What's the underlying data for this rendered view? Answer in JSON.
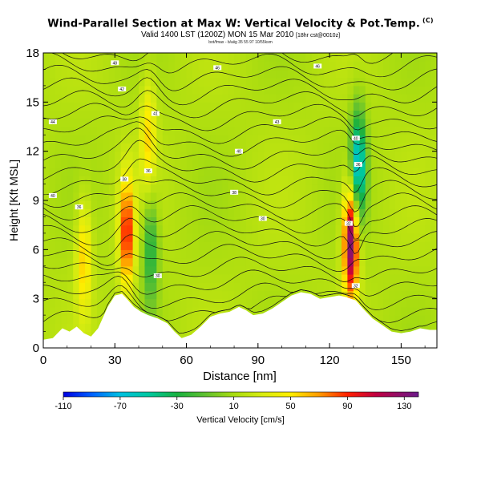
{
  "title": {
    "main": "Wind-Parallel Section at Max W: Vertical Velocity & Pot.Temp.",
    "copyright": "(C)",
    "valid": "Valid 1400 LST (1200Z) MON 15 Mar 2010",
    "valid_note": "[18hr cst@0010z]",
    "subtitle": "bot/fmax - b/aiig 35 55 97 10/55ksm"
  },
  "chart_data": {
    "type": "heatmap",
    "xlabel": "Distance [nm]",
    "ylabel": "Height [Kft MSL]",
    "xlim": [
      0,
      165
    ],
    "ylim": [
      0,
      18
    ],
    "xticks": [
      "0",
      "30",
      "60",
      "90",
      "120",
      "150"
    ],
    "yticks": [
      "0",
      "3",
      "6",
      "9",
      "12",
      "15",
      "18"
    ],
    "colorbar": {
      "label": "Vertical Velocity [cm/s]",
      "range": [
        -110,
        140
      ],
      "tick_labels": [
        "-110",
        "-70",
        "-30",
        "10",
        "50",
        "90",
        "130"
      ],
      "tick_values": [
        -110,
        -70,
        -30,
        10,
        50,
        90,
        130
      ],
      "stops": [
        {
          "v": -110,
          "color": "#0000e0"
        },
        {
          "v": -90,
          "color": "#0060ff"
        },
        {
          "v": -70,
          "color": "#00c0e0"
        },
        {
          "v": -50,
          "color": "#00c8a0"
        },
        {
          "v": -30,
          "color": "#18b040"
        },
        {
          "v": -10,
          "color": "#60c030"
        },
        {
          "v": 10,
          "color": "#a8dc10"
        },
        {
          "v": 30,
          "color": "#d8ec10"
        },
        {
          "v": 50,
          "color": "#ffee00"
        },
        {
          "v": 70,
          "color": "#ff9a00"
        },
        {
          "v": 90,
          "color": "#ff2000"
        },
        {
          "v": 110,
          "color": "#c00040"
        },
        {
          "v": 140,
          "color": "#6a1a8a"
        }
      ]
    },
    "terrain": [
      [
        0,
        0.5
      ],
      [
        4,
        0.6
      ],
      [
        8,
        1.2
      ],
      [
        11,
        1
      ],
      [
        14,
        1.3
      ],
      [
        17,
        0.9
      ],
      [
        20,
        0.7
      ],
      [
        23,
        1.2
      ],
      [
        27,
        2.5
      ],
      [
        30,
        3.2
      ],
      [
        33,
        3.3
      ],
      [
        35,
        3.0
      ],
      [
        38,
        2.5
      ],
      [
        41,
        2.2
      ],
      [
        44,
        2.0
      ],
      [
        48,
        1.8
      ],
      [
        52,
        1.5
      ],
      [
        55,
        1.0
      ],
      [
        58,
        0.6
      ],
      [
        62,
        0.8
      ],
      [
        66,
        1.3
      ],
      [
        70,
        1.9
      ],
      [
        74,
        2.1
      ],
      [
        78,
        2.2
      ],
      [
        82,
        2.5
      ],
      [
        85,
        2.3
      ],
      [
        88,
        2.0
      ],
      [
        92,
        2.1
      ],
      [
        96,
        2.4
      ],
      [
        100,
        2.8
      ],
      [
        104,
        3.2
      ],
      [
        108,
        3.4
      ],
      [
        112,
        3.3
      ],
      [
        116,
        3.0
      ],
      [
        120,
        3.1
      ],
      [
        124,
        3.2
      ],
      [
        127,
        3.1
      ],
      [
        129,
        3.0
      ],
      [
        131,
        2.9
      ],
      [
        134,
        2.4
      ],
      [
        138,
        1.8
      ],
      [
        142,
        1.4
      ],
      [
        146,
        1.0
      ],
      [
        150,
        0.9
      ],
      [
        154,
        1.0
      ],
      [
        158,
        1.2
      ],
      [
        162,
        1.1
      ],
      [
        165,
        1.1
      ]
    ],
    "velocity_features": [
      {
        "x": 35,
        "y": 7.0,
        "value": 80
      },
      {
        "x": 44,
        "y": 13.0,
        "value": 40
      },
      {
        "x": 45,
        "y": 6.0,
        "value": -45
      },
      {
        "x": 17,
        "y": 5.5,
        "value": 45
      },
      {
        "x": 129,
        "y": 6.5,
        "value": 125
      },
      {
        "x": 132,
        "y": 11.0,
        "value": -85
      }
    ],
    "contour_labels": [
      {
        "x": 30,
        "y": 17.4,
        "text": "48"
      },
      {
        "x": 73,
        "y": 17.1,
        "text": "46"
      },
      {
        "x": 115,
        "y": 17.2,
        "text": "46"
      },
      {
        "x": 33,
        "y": 15.8,
        "text": "42"
      },
      {
        "x": 47,
        "y": 14.3,
        "text": "41"
      },
      {
        "x": 4,
        "y": 13.8,
        "text": "44"
      },
      {
        "x": 98,
        "y": 13.8,
        "text": "43"
      },
      {
        "x": 82,
        "y": 12.0,
        "text": "40"
      },
      {
        "x": 44,
        "y": 10.8,
        "text": "36"
      },
      {
        "x": 34,
        "y": 10.3,
        "text": "38"
      },
      {
        "x": 4,
        "y": 9.3,
        "text": "40"
      },
      {
        "x": 80,
        "y": 9.5,
        "text": "38"
      },
      {
        "x": 15,
        "y": 8.6,
        "text": "36"
      },
      {
        "x": 92,
        "y": 7.9,
        "text": "30"
      },
      {
        "x": 48,
        "y": 4.4,
        "text": "30"
      },
      {
        "x": 131,
        "y": 12.8,
        "text": "40"
      },
      {
        "x": 132,
        "y": 11.2,
        "text": "36"
      },
      {
        "x": 128,
        "y": 7.6,
        "text": "32"
      },
      {
        "x": 131,
        "y": 3.8,
        "text": "32"
      }
    ],
    "grid": false
  }
}
